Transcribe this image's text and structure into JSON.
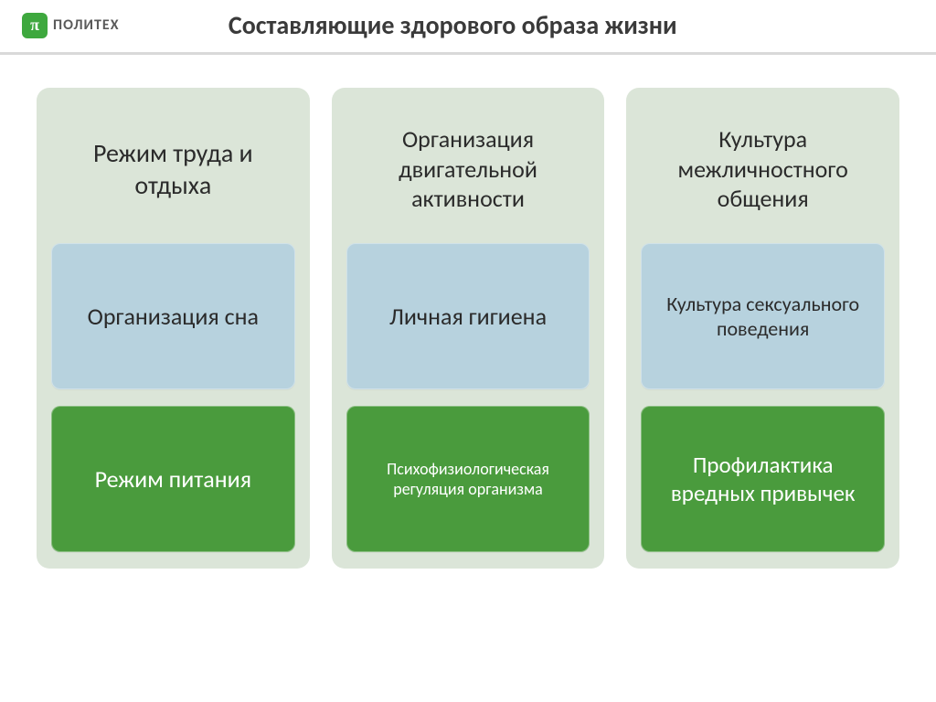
{
  "logo": {
    "icon_glyph": "π",
    "text": "ПОЛИТЕХ",
    "icon_bg": "#3ea83e",
    "icon_fg": "#ffffff",
    "text_color": "#5a5a5a"
  },
  "title": "Составляющие здорового образа жизни",
  "header_divider_color": "#d9d9d9",
  "layout": {
    "column_bg": "#dbe5d8",
    "mid_box_bg": "#b7d2de",
    "bot_box_bg": "#4a9b3d",
    "bot_box_fg": "#ffffff",
    "header_text_color": "#2b2b2b",
    "mid_text_color": "#2b2b2b"
  },
  "columns": [
    {
      "header": "Режим труда и отдыха",
      "header_fontsize": 28,
      "mid": "Организация сна",
      "mid_fontsize": 26,
      "bot": "Режим питания",
      "bot_fontsize": 26
    },
    {
      "header": "Организация двигательной активности",
      "header_fontsize": 26,
      "mid": "Личная гигиена",
      "mid_fontsize": 26,
      "bot": "Психофизиологическая регуляция организма",
      "bot_fontsize": 18
    },
    {
      "header": "Культура межличностного общения",
      "header_fontsize": 26,
      "mid": "Культура сексуального поведения",
      "mid_fontsize": 22,
      "bot": "Профилактика вредных привычек",
      "bot_fontsize": 25
    }
  ]
}
